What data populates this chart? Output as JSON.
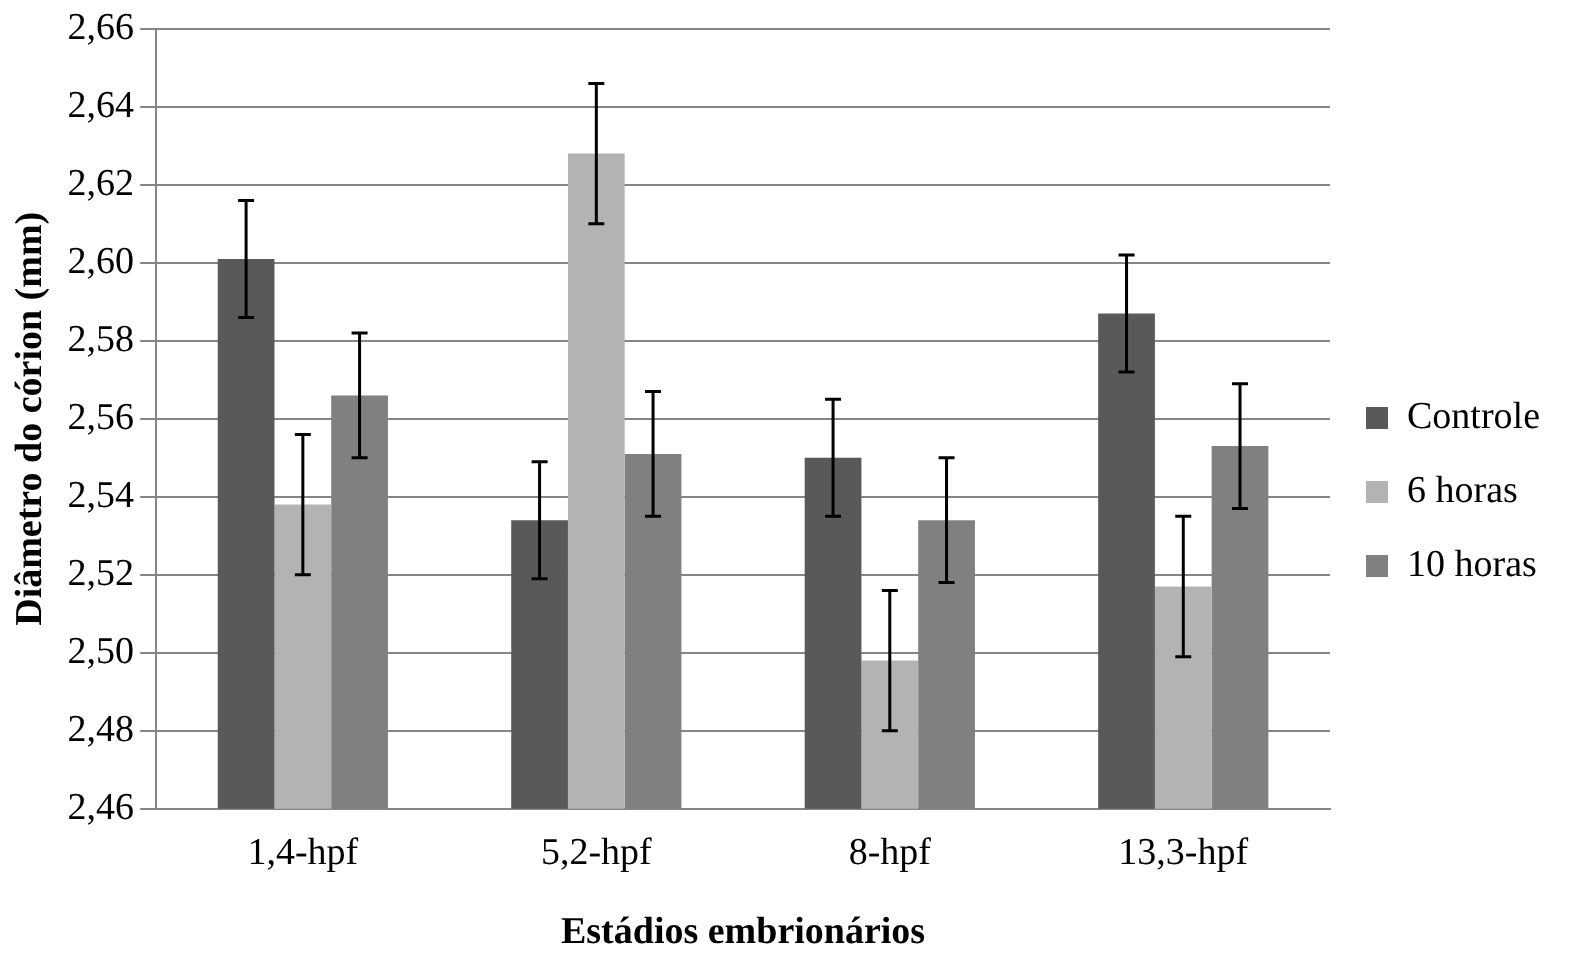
{
  "chart_data": {
    "type": "bar",
    "xlabel": "Estádios embrionários",
    "ylabel": "Diâmetro do córion (mm)",
    "categories": [
      "1,4-hpf",
      "5,2-hpf",
      "8-hpf",
      "13,3-hpf"
    ],
    "series": [
      {
        "name": "Controle",
        "color": "#595959",
        "values": [
          2.601,
          2.534,
          2.55,
          2.587
        ],
        "errors": [
          0.015,
          0.015,
          0.015,
          0.015
        ]
      },
      {
        "name": "6 horas",
        "color": "#b3b3b3",
        "values": [
          2.538,
          2.628,
          2.498,
          2.517
        ],
        "errors": [
          0.018,
          0.018,
          0.018,
          0.018
        ]
      },
      {
        "name": "10 horas",
        "color": "#808080",
        "values": [
          2.566,
          2.551,
          2.534,
          2.553
        ],
        "errors": [
          0.016,
          0.016,
          0.016,
          0.016
        ]
      }
    ],
    "ylim": [
      2.46,
      2.66
    ],
    "yticks": [
      {
        "value": 2.46,
        "label": "2,46"
      },
      {
        "value": 2.48,
        "label": "2,48"
      },
      {
        "value": 2.5,
        "label": "2,50"
      },
      {
        "value": 2.52,
        "label": "2,52"
      },
      {
        "value": 2.54,
        "label": "2,54"
      },
      {
        "value": 2.56,
        "label": "2,56"
      },
      {
        "value": 2.58,
        "label": "2,58"
      },
      {
        "value": 2.6,
        "label": "2,60"
      },
      {
        "value": 2.62,
        "label": "2,62"
      },
      {
        "value": 2.64,
        "label": "2,64"
      },
      {
        "value": 2.66,
        "label": "2,66"
      }
    ],
    "grid": "y",
    "legend": "right"
  }
}
